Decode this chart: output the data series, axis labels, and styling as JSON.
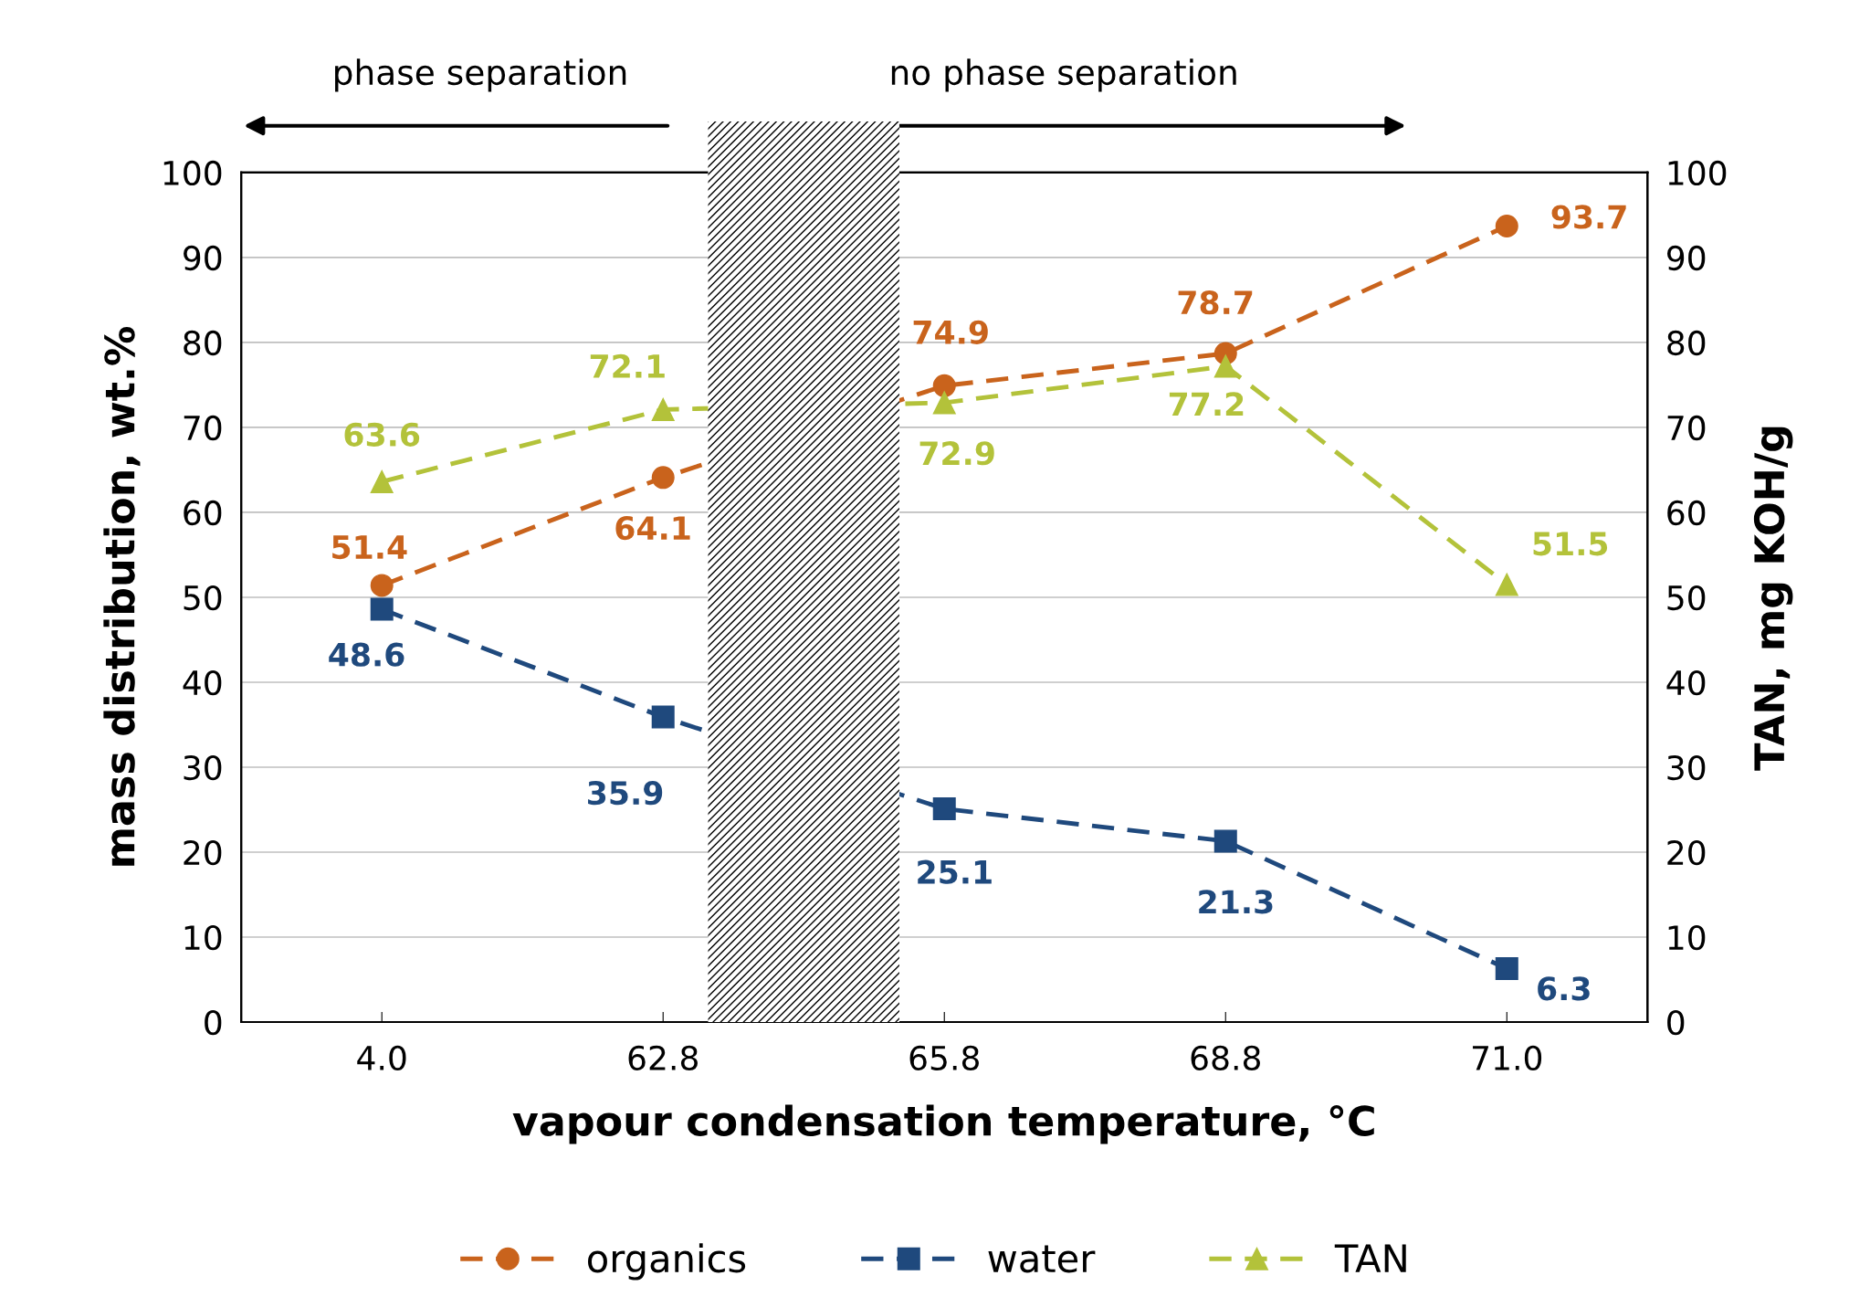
{
  "chart_data": {
    "type": "line",
    "xlabel": "vapour condensation temperature, °C",
    "ylabel": "mass distribution, wt.%",
    "y2label": "TAN, mg KOH/g",
    "categories": [
      "4.0",
      "62.8",
      "65.8",
      "68.8",
      "71.0"
    ],
    "series": [
      {
        "name": "organics",
        "color": "#c9631c",
        "marker": "circle",
        "values": [
          51.4,
          64.1,
          74.9,
          78.7,
          93.7
        ]
      },
      {
        "name": "water",
        "color": "#1f497d",
        "marker": "square",
        "values": [
          48.6,
          35.9,
          25.1,
          21.3,
          6.3
        ]
      },
      {
        "name": "TAN",
        "color": "#b3c23a",
        "marker": "triangle",
        "axis": "y2",
        "values": [
          63.6,
          72.1,
          72.9,
          77.2,
          51.5
        ]
      }
    ],
    "ylim": [
      0,
      100
    ],
    "yticks": [
      0,
      10,
      20,
      30,
      40,
      50,
      60,
      70,
      80,
      90,
      100
    ],
    "y2lim": [
      0,
      100
    ],
    "y2ticks": [
      0,
      10,
      20,
      30,
      40,
      50,
      60,
      70,
      80,
      90,
      100
    ],
    "bands": [
      {
        "axis": "x",
        "from": "62.8",
        "to": "65.8",
        "color": "#000000"
      }
    ],
    "annotations": [
      "phase separation",
      "no phase separation"
    ],
    "data_labels": true,
    "grid": "y",
    "legend": "bottom",
    "line_style": "dashed"
  }
}
